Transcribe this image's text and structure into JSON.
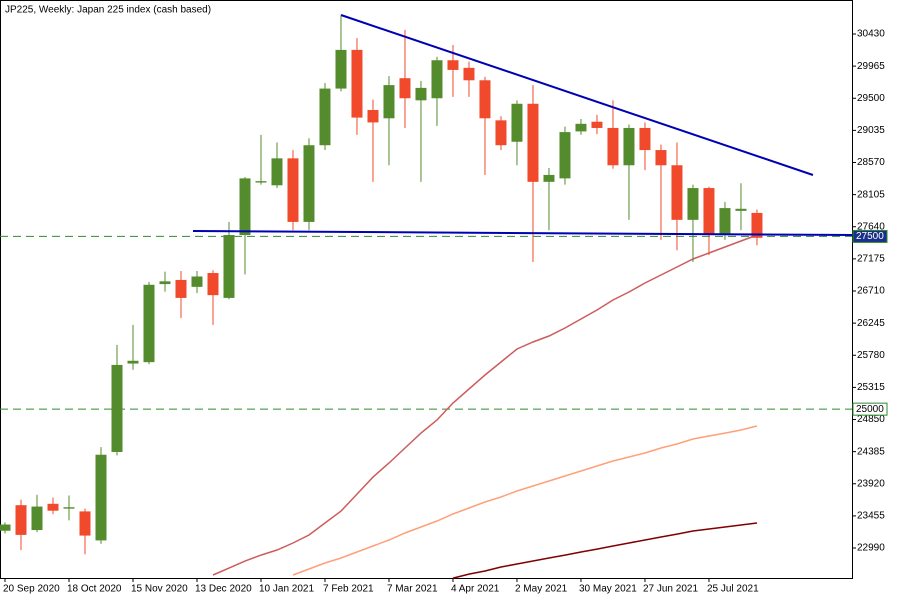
{
  "chart_data": {
    "type": "candlestick",
    "title": "JP225, Weekly:  Japan 225 index (cash based)",
    "categories": [
      "20 Sep 2020",
      null,
      null,
      null,
      "18 Oct 2020",
      null,
      null,
      null,
      "15 Nov 2020",
      null,
      null,
      null,
      "13 Dec 2020",
      null,
      null,
      null,
      "10 Jan 2021",
      null,
      null,
      null,
      "7 Feb 2021",
      null,
      null,
      null,
      "7 Mar 2021",
      null,
      null,
      null,
      "4 Apr 2021",
      null,
      null,
      null,
      "2 May 2021",
      null,
      null,
      null,
      "30 May 2021",
      null,
      null,
      null,
      "27 Jun 2021",
      null,
      null,
      null,
      "25 Jul 2021",
      null,
      null,
      null
    ],
    "ohlc": {
      "up_color": "#548b2d",
      "down_color": "#f0492c",
      "open": [
        23240,
        23610,
        23250,
        23630,
        23560,
        23520,
        23100,
        24380,
        25660,
        25680,
        26810,
        26870,
        26770,
        26970,
        26610,
        27520,
        28280,
        28240,
        28630,
        27710,
        28820,
        29640,
        30200,
        29330,
        29210,
        29790,
        29470,
        29500,
        30050,
        29940,
        29760,
        29180,
        28870,
        29420,
        28290,
        28340,
        29020,
        29160,
        29070,
        28530,
        29070,
        28750,
        28530,
        27740,
        28200,
        27520,
        27870,
        27840
      ],
      "high": [
        23360,
        23690,
        23760,
        23720,
        23750,
        23560,
        24450,
        25930,
        26220,
        26840,
        26990,
        27000,
        27000,
        27010,
        27710,
        28360,
        28970,
        28860,
        28750,
        28920,
        29720,
        30700,
        30370,
        29480,
        29820,
        30490,
        29750,
        30100,
        30270,
        30030,
        29810,
        29240,
        29470,
        29690,
        28490,
        29090,
        29200,
        29260,
        29470,
        29120,
        29150,
        28830,
        28860,
        28250,
        28220,
        28000,
        28270,
        27890
      ],
      "low": [
        23200,
        22960,
        23220,
        23480,
        23390,
        22900,
        23050,
        24330,
        25570,
        25650,
        26700,
        26320,
        26680,
        26220,
        26590,
        26950,
        28250,
        28200,
        27590,
        27590,
        28750,
        29600,
        28970,
        28290,
        28530,
        29070,
        28290,
        29100,
        29520,
        29520,
        28390,
        28750,
        28530,
        27130,
        27590,
        28250,
        28970,
        28980,
        28480,
        27740,
        28460,
        27450,
        27300,
        27130,
        27230,
        27450,
        27590,
        27370
      ],
      "close": [
        23330,
        23180,
        23590,
        23530,
        23580,
        23170,
        24340,
        25640,
        25700,
        26800,
        26850,
        26610,
        26920,
        26650,
        27520,
        28340,
        28300,
        28630,
        27710,
        28820,
        29640,
        30200,
        29220,
        29150,
        29690,
        29500,
        29650,
        30050,
        29910,
        29760,
        29210,
        28820,
        29420,
        28290,
        28390,
        29010,
        29130,
        29070,
        28530,
        29070,
        28750,
        28530,
        27740,
        28200,
        27520,
        27910,
        27900,
        27480
      ]
    },
    "lines": [
      {
        "color": "#cd5c5c",
        "values": [
          null,
          null,
          null,
          null,
          null,
          null,
          null,
          null,
          null,
          null,
          null,
          null,
          null,
          22599,
          22700,
          22801,
          22888,
          22961,
          23062,
          23178,
          23352,
          23525,
          23771,
          24017,
          24220,
          24437,
          24654,
          24843,
          25089,
          25291,
          25494,
          25682,
          25870,
          25972,
          26058,
          26174,
          26305,
          26435,
          26580,
          26696,
          26826,
          26941,
          27057,
          27173,
          27260,
          27347,
          27434,
          27520
        ]
      },
      {
        "color": "#ffa07a",
        "values": [
          null,
          null,
          null,
          null,
          null,
          null,
          null,
          null,
          null,
          null,
          null,
          null,
          null,
          null,
          null,
          null,
          null,
          null,
          22599,
          22686,
          22773,
          22845,
          22932,
          23019,
          23106,
          23207,
          23294,
          23381,
          23482,
          23569,
          23656,
          23728,
          23815,
          23887,
          23960,
          24032,
          24104,
          24177,
          24249,
          24307,
          24365,
          24437,
          24495,
          24568,
          24611,
          24654,
          24698,
          24756
        ]
      },
      {
        "color": "#800000",
        "values": [
          null,
          null,
          null,
          null,
          null,
          null,
          null,
          null,
          null,
          null,
          null,
          null,
          null,
          null,
          null,
          null,
          null,
          null,
          null,
          null,
          null,
          null,
          null,
          null,
          null,
          null,
          null,
          null,
          22555,
          22613,
          22657,
          22715,
          22758,
          22802,
          22845,
          22888,
          22932,
          22975,
          23019,
          23062,
          23106,
          23149,
          23192,
          23236,
          23265,
          23294,
          23323,
          23352
        ]
      }
    ],
    "trendlines": [
      {
        "color": "#0000b4",
        "x": [
          21,
          50.5
        ],
        "values": [
          30705,
          28389
        ]
      },
      {
        "color": "#0000b4",
        "x": [
          11.75,
          52.94
        ],
        "values": [
          27578,
          27520
        ]
      }
    ],
    "levels": [
      {
        "value": 27500,
        "color": "#2e8b2e",
        "box_fill": "#1a2f8a",
        "text_color": "#ffffff"
      },
      {
        "value": 25000,
        "color": "#2e8b2e",
        "box_fill": "#ffffff",
        "text_color": "#000000"
      }
    ],
    "xlim": [
      -0.3125,
      52.94
    ],
    "ylim": [
      22556,
      30922
    ],
    "yticks": [
      22990,
      23455,
      23920,
      24385,
      24850,
      25315,
      25780,
      26245,
      26710,
      27175,
      27640,
      28105,
      28570,
      29035,
      29500,
      29965,
      30430
    ]
  }
}
